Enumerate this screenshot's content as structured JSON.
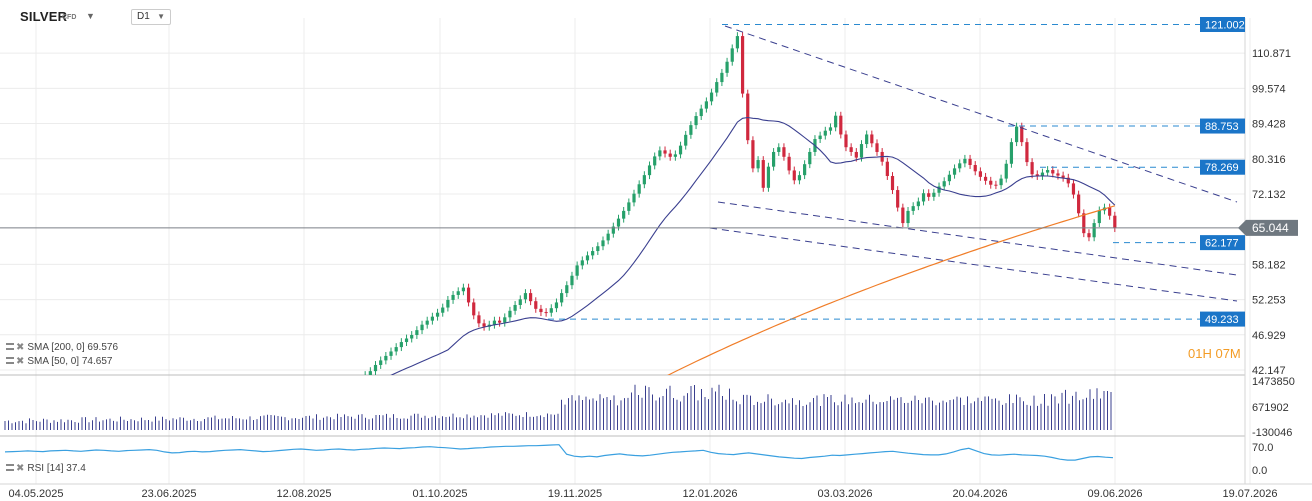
{
  "header": {
    "symbol": "SILVER",
    "symbol_sub": "CFD",
    "timeframe": "D1"
  },
  "indicators": {
    "sma200_label": "SMA [200, 0] 69.576",
    "sma50_label": "SMA [50, 0] 74.657",
    "rsi_label": "RSI [14] 37.4"
  },
  "timer": "01H 07M",
  "colors": {
    "sma200": "#f07d28",
    "sma50": "#3a3f8f",
    "up": "#26a06a",
    "down": "#d0283e",
    "volume": "#3a3f8f",
    "rsi": "#3aa0e0",
    "label_bg": "#1a75c8",
    "price_tag": "#6f7880"
  },
  "chart_data": {
    "type": "candlestick",
    "x_labels": [
      "04.05.2025",
      "23.06.2025",
      "12.08.2025",
      "01.10.2025",
      "19.11.2025",
      "12.01.2026",
      "03.03.2026",
      "20.04.2026",
      "09.06.2026",
      "19.07.2026"
    ],
    "y_ticks": [
      "110.871",
      "99.574",
      "89.428",
      "80.316",
      "72.132",
      "58.182",
      "52.253",
      "46.929",
      "42.147"
    ],
    "current_price": "65.044",
    "levels": [
      "121.002",
      "88.753",
      "78.269",
      "62.177",
      "49.233"
    ],
    "volume_ticks": [
      "1473850",
      "671902",
      "-130046"
    ],
    "rsi_ticks": [
      "70.0",
      "0.0"
    ],
    "closes": [
      41.0,
      41.5,
      42.0,
      42.8,
      43.4,
      44.0,
      44.6,
      45.2,
      45.9,
      46.4,
      46.9,
      47.6,
      48.4,
      49.0,
      49.6,
      50.2,
      51.0,
      52.2,
      53.0,
      53.6,
      54.2,
      51.8,
      49.8,
      48.6,
      48.1,
      48.4,
      49.0,
      48.7,
      49.5,
      50.5,
      51.4,
      52.3,
      53.3,
      52.0,
      50.8,
      50.3,
      50.2,
      50.9,
      51.8,
      53.3,
      54.6,
      56.2,
      58.0,
      58.9,
      59.8,
      60.6,
      61.5,
      62.6,
      63.9,
      65.3,
      66.9,
      68.5,
      70.3,
      72.2,
      74.3,
      76.4,
      78.7,
      80.9,
      82.4,
      81.6,
      80.8,
      81.4,
      83.6,
      86.4,
      89.0,
      91.5,
      93.6,
      95.7,
      98.3,
      101.5,
      104.4,
      108.0,
      112.5,
      116.8,
      98.0,
      85.0,
      78.0,
      80.0,
      73.5,
      78.4,
      82.0,
      83.2,
      80.8,
      77.5,
      75.2,
      76.4,
      79.0,
      82.0,
      85.3,
      86.2,
      87.5,
      88.4,
      91.6,
      86.5,
      83.2,
      82.0,
      80.6,
      84.0,
      86.5,
      84.2,
      82.0,
      79.6,
      76.2,
      73.0,
      69.2,
      66.0,
      68.5,
      69.5,
      70.5,
      72.3,
      71.5,
      72.4,
      73.8,
      75.0,
      76.5,
      78.0,
      79.2,
      80.3,
      78.8,
      77.3,
      76.0,
      75.1,
      74.2,
      74.1,
      75.6,
      79.1,
      84.5,
      88.6,
      84.5,
      79.5,
      76.6,
      76.2,
      77.0,
      77.6,
      76.8,
      76.3,
      75.8,
      74.5,
      72.0,
      68.0,
      64.0,
      63.2,
      66.0,
      68.6,
      69.2,
      67.5,
      65.0
    ],
    "rsi": [
      55,
      56,
      57,
      58,
      57,
      56,
      58,
      59,
      60,
      58,
      57,
      59,
      61,
      60,
      58,
      57,
      59,
      60,
      61,
      62,
      60,
      55,
      52,
      53,
      56,
      57,
      55,
      56,
      58,
      60,
      61,
      62,
      60,
      58,
      56,
      57,
      59,
      61,
      63,
      64,
      62,
      60,
      61,
      63,
      64,
      62,
      61,
      63,
      64,
      66,
      67,
      66,
      65,
      67,
      68,
      70,
      71,
      69,
      68,
      66,
      64,
      65,
      67,
      68,
      70,
      71,
      72,
      72,
      73,
      74,
      74,
      75,
      76,
      77,
      48,
      42,
      40,
      42,
      40,
      44,
      47,
      49,
      46,
      44,
      43,
      45,
      48,
      51,
      54,
      55,
      57,
      58,
      60,
      54,
      50,
      48,
      47,
      50,
      52,
      49,
      46,
      43,
      40,
      38,
      36,
      35,
      38,
      40,
      42,
      45,
      44,
      46,
      48,
      50,
      52,
      54,
      56,
      57,
      54,
      51,
      49,
      47,
      46,
      46,
      49,
      55,
      62,
      66,
      58,
      50,
      46,
      45,
      47,
      48,
      46,
      45,
      44,
      42,
      38,
      33,
      30,
      30,
      35,
      40,
      41,
      39,
      37.4
    ]
  }
}
